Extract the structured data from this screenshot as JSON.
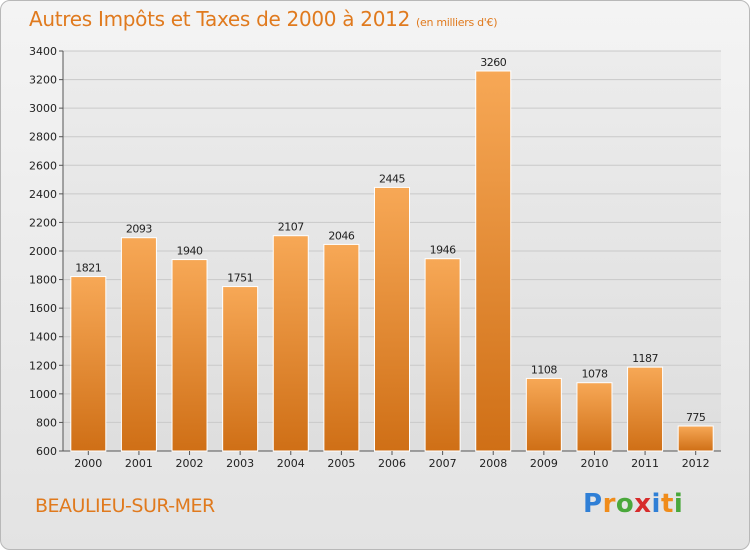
{
  "title": "Autres Impôts et Taxes de 2000 à 2012",
  "unit": "(en milliers d'€)",
  "city": "BEAULIEU-SUR-MER",
  "logo": {
    "letters": [
      "P",
      "r",
      "o",
      "x",
      "i",
      "t",
      "i"
    ],
    "colors": [
      "#2f7fd6",
      "#f08c1a",
      "#4aa83b",
      "#d72b2b",
      "#2f7fd6",
      "#f08c1a",
      "#4aa83b"
    ]
  },
  "colors": {
    "bar": "#f0922e",
    "accent": "#e07a1e"
  },
  "chart_data": {
    "type": "bar",
    "title": "Autres Impôts et Taxes de 2000 à 2012",
    "categories": [
      "2000",
      "2001",
      "2002",
      "2003",
      "2004",
      "2005",
      "2006",
      "2007",
      "2008",
      "2009",
      "2010",
      "2011",
      "2012"
    ],
    "values": [
      1821,
      2093,
      1940,
      1751,
      2107,
      2046,
      2445,
      1946,
      3260,
      1108,
      1078,
      1187,
      775
    ],
    "ylim": [
      600,
      3400
    ],
    "yticks": [
      600,
      800,
      1000,
      1200,
      1400,
      1600,
      1800,
      2000,
      2200,
      2400,
      2600,
      2800,
      3000,
      3200,
      3400
    ],
    "grid": true,
    "xlabel": "",
    "ylabel": ""
  }
}
